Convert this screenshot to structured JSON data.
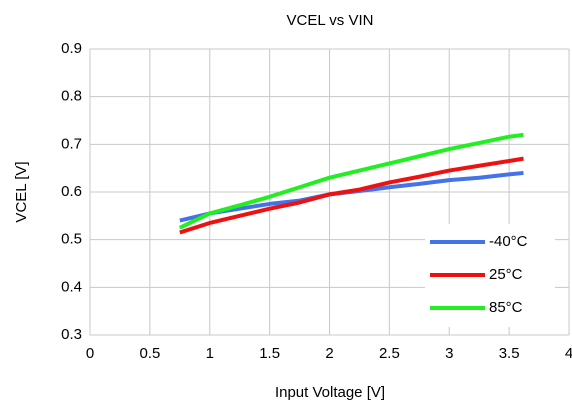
{
  "chart_data": {
    "type": "line",
    "title": "VCEL vs VIN",
    "xlabel": "Input Voltage [V]",
    "ylabel": "VCEL [V]",
    "x": [
      0.75,
      1,
      1.25,
      1.5,
      1.75,
      2,
      2.25,
      2.5,
      2.75,
      3,
      3.25,
      3.5,
      3.62
    ],
    "series": [
      {
        "name": "-40°C",
        "color": "#4472e8",
        "values": [
          0.54,
          0.555,
          0.565,
          0.575,
          0.582,
          0.595,
          0.602,
          0.61,
          0.617,
          0.625,
          0.63,
          0.637,
          0.64
        ]
      },
      {
        "name": "25°C",
        "color": "#ee1111",
        "values": [
          0.515,
          0.535,
          0.55,
          0.565,
          0.578,
          0.595,
          0.605,
          0.62,
          0.632,
          0.645,
          0.655,
          0.665,
          0.67
        ]
      },
      {
        "name": "85°C",
        "color": "#22ee22",
        "values": [
          0.525,
          0.555,
          0.572,
          0.59,
          0.61,
          0.63,
          0.645,
          0.66,
          0.675,
          0.69,
          0.703,
          0.716,
          0.72
        ]
      }
    ],
    "xlim": [
      0,
      4
    ],
    "xticks": [
      0,
      0.5,
      1,
      1.5,
      2,
      2.5,
      3,
      3.5,
      4
    ],
    "ylim": [
      0.3,
      0.9
    ],
    "yticks": [
      0.3,
      0.4,
      0.5,
      0.6,
      0.7,
      0.8,
      0.9
    ],
    "grid": true,
    "legend": "lower right"
  }
}
